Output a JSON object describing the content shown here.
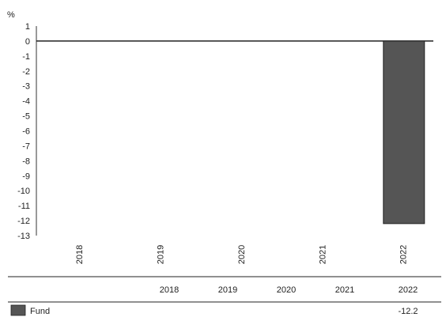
{
  "chart_data": {
    "type": "bar",
    "ylabel": "%",
    "categories": [
      "2018",
      "2019",
      "2020",
      "2021",
      "2022"
    ],
    "series": [
      {
        "name": "Fund",
        "values": [
          null,
          null,
          null,
          null,
          -12.2
        ],
        "color": "#555555"
      }
    ],
    "ylim": [
      -13,
      1
    ],
    "yticks": [
      "1",
      "0",
      "-1",
      "-2",
      "-3",
      "-4",
      "-5",
      "-6",
      "-7",
      "-8",
      "-9",
      "-10",
      "-11",
      "-12",
      "-13"
    ],
    "grid": false,
    "table": {
      "header": [
        "2018",
        "2019",
        "2020",
        "2021",
        "2022"
      ],
      "rows": [
        {
          "label": "Fund",
          "values": [
            "",
            "",
            "",
            "",
            "-12.2"
          ]
        }
      ]
    }
  }
}
